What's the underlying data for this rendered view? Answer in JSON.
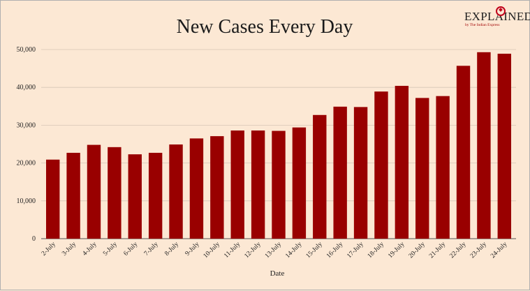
{
  "branding": {
    "wordmark": "EXPLAINED",
    "tagline": "by The Indian Express",
    "accent_color": "#c0001a"
  },
  "chart_data": {
    "type": "bar",
    "title": "New Cases Every Day",
    "xlabel": "Date",
    "ylabel": "",
    "categories": [
      "2-July",
      "3-July",
      "4-July",
      "5-July",
      "6-July",
      "7-July",
      "8-July",
      "9-July",
      "10-July",
      "11-July",
      "12-July",
      "13-July",
      "14-July",
      "15-July",
      "16-July",
      "17-July",
      "18-July",
      "19-July",
      "20-July",
      "21-July",
      "22-July",
      "23-July",
      "24-July"
    ],
    "values": [
      20900,
      22700,
      24800,
      24200,
      22300,
      22700,
      24900,
      26500,
      27100,
      28600,
      28600,
      28500,
      29400,
      32700,
      34900,
      34800,
      38900,
      40400,
      37200,
      37700,
      45700,
      49300,
      48900
    ],
    "yticks": [
      "0",
      "10,000",
      "20,000",
      "30,000",
      "40,000",
      "50,000"
    ],
    "ytick_values": [
      0,
      10000,
      20000,
      30000,
      40000,
      50000
    ],
    "ylim": [
      0,
      50000
    ],
    "grid": true,
    "bar_color": "#990000",
    "background_color": "#fce8d4",
    "gridline_color": "#d6c6b6"
  }
}
